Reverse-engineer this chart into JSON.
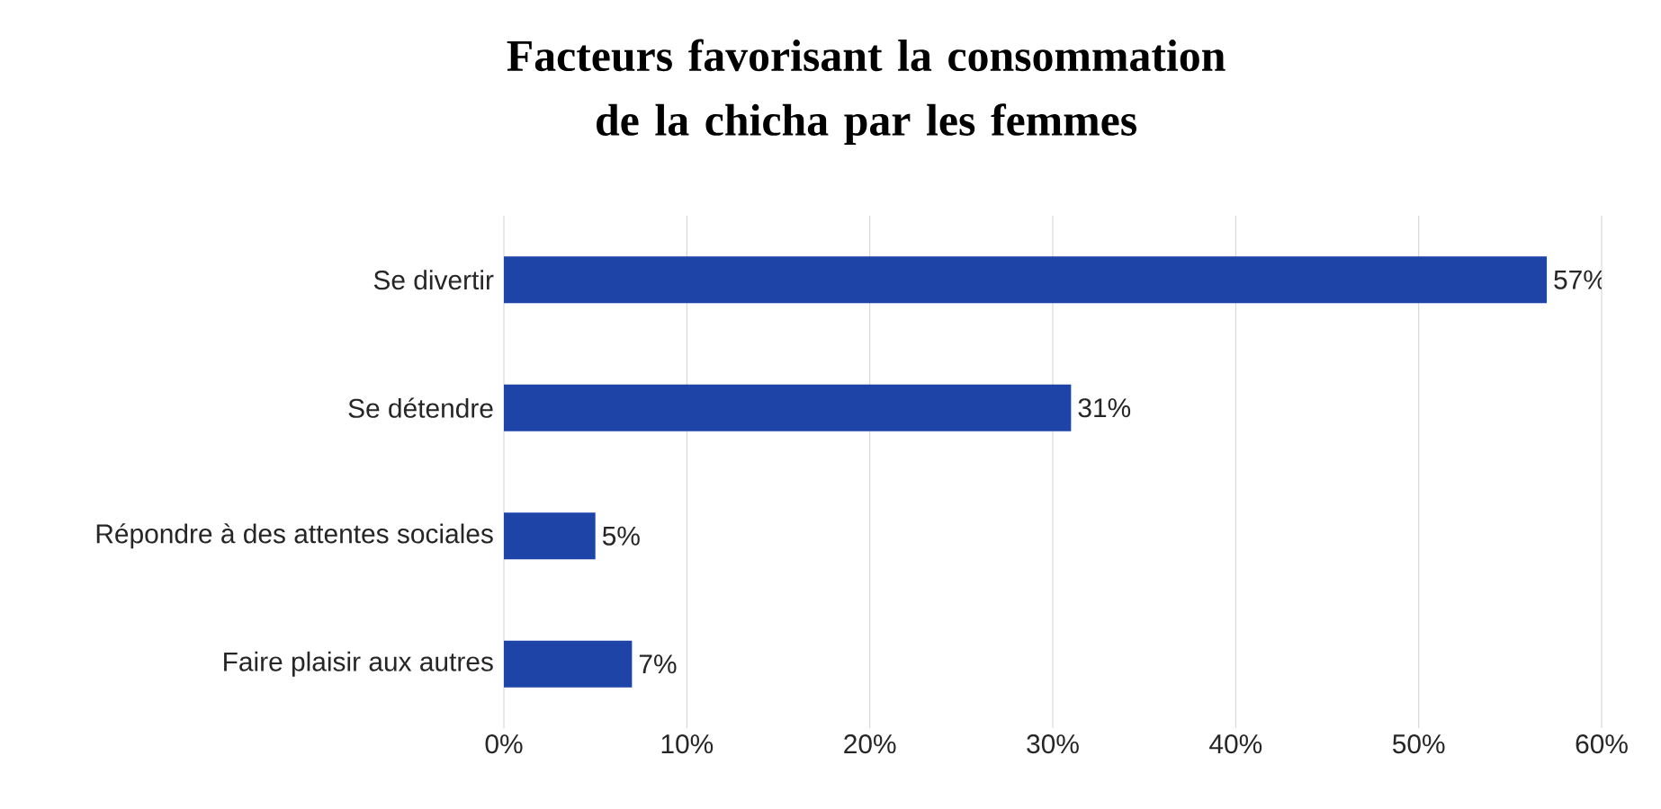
{
  "chart_data": {
    "type": "bar",
    "orientation": "horizontal",
    "title": "Facteurs favorisant la consommation de la chicha par les femmes",
    "categories": [
      "Se divertir",
      "Se détendre",
      "Répondre à des attentes sociales",
      "Faire plaisir aux autres"
    ],
    "values": [
      57,
      31,
      5,
      7
    ],
    "value_labels": [
      "57%",
      "31%",
      "5%",
      "7%"
    ],
    "color": "#1f44a8",
    "xlim": [
      0,
      60
    ],
    "xticks": [
      {
        "value": 0,
        "label": "0%"
      },
      {
        "value": 10,
        "label": "10%"
      },
      {
        "value": 20,
        "label": "20%"
      },
      {
        "value": 30,
        "label": "30%"
      },
      {
        "value": 40,
        "label": "40%"
      },
      {
        "value": 50,
        "label": "50%"
      },
      {
        "value": 60,
        "label": "60%"
      }
    ],
    "grid": "x"
  }
}
